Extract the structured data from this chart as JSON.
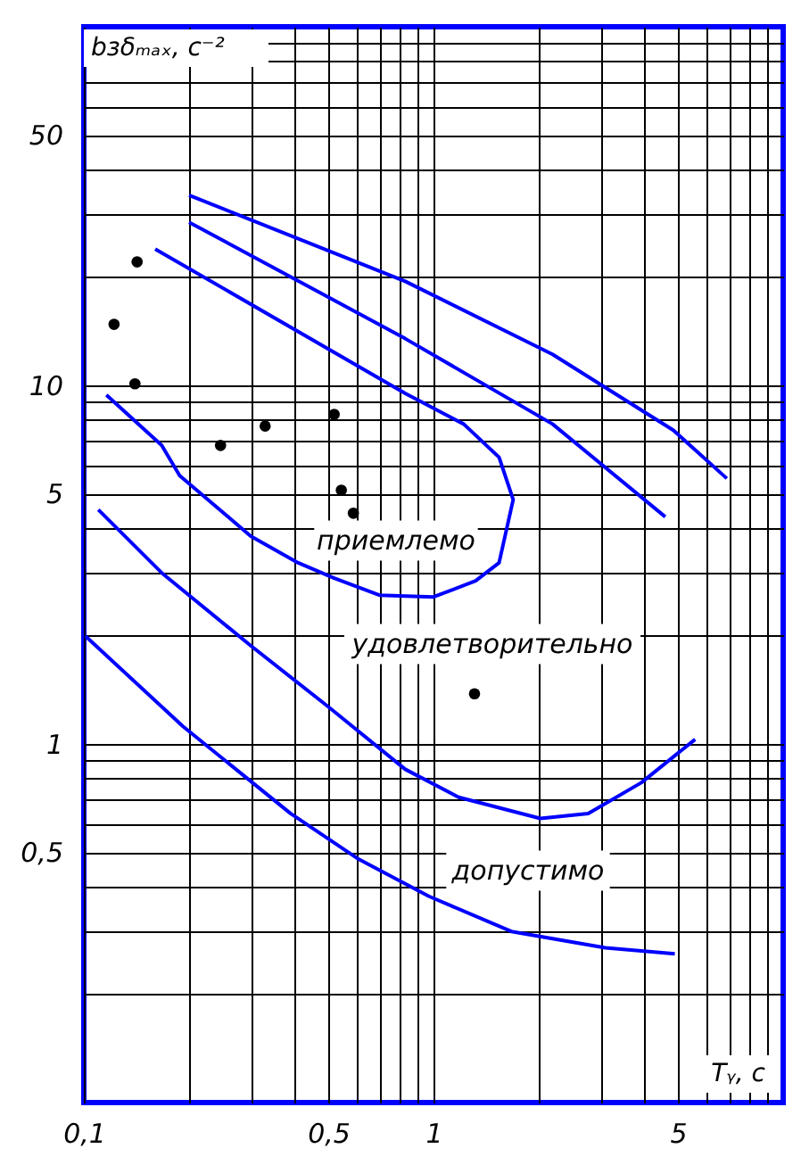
{
  "chart_data": {
    "type": "line",
    "xlabel": "Tᵧ, с",
    "ylabel": "bзδₘₐₓ, с⁻²",
    "log": "xy",
    "grid": true,
    "line_style": "solid",
    "xlim": [
      0.1,
      10
    ],
    "ylim": [
      0.1,
      100
    ],
    "xticks": [
      {
        "value": 0.1,
        "label": "0,1"
      },
      {
        "value": 0.2,
        "label": null
      },
      {
        "value": 0.3,
        "label": null
      },
      {
        "value": 0.4,
        "label": null
      },
      {
        "value": 0.5,
        "label": "0,5"
      },
      {
        "value": 0.6,
        "label": null
      },
      {
        "value": 0.7,
        "label": null
      },
      {
        "value": 0.8,
        "label": null
      },
      {
        "value": 0.9,
        "label": null
      },
      1,
      {
        "value": 2,
        "label": null
      },
      {
        "value": 3,
        "label": null
      },
      {
        "value": 4,
        "label": null
      },
      5,
      {
        "value": 6,
        "label": null
      },
      {
        "value": 7,
        "label": null
      },
      {
        "value": 8,
        "label": null
      },
      {
        "value": 9,
        "label": null
      }
    ],
    "yticks": [
      {
        "value": 0.2,
        "label": null
      },
      {
        "value": 0.3,
        "label": null
      },
      {
        "value": 0.4,
        "label": null
      },
      {
        "value": 0.5,
        "label": "0,5"
      },
      {
        "value": 0.6,
        "label": null
      },
      {
        "value": 0.7,
        "label": null
      },
      {
        "value": 0.8,
        "label": null
      },
      {
        "value": 0.9,
        "label": null
      },
      1,
      {
        "value": 2,
        "label": null
      },
      {
        "value": 3,
        "label": null
      },
      {
        "value": 4,
        "label": null
      },
      5,
      {
        "value": 6,
        "label": null
      },
      {
        "value": 7,
        "label": null
      },
      {
        "value": 8,
        "label": null
      },
      {
        "value": 9,
        "label": null
      },
      10,
      {
        "value": 20,
        "label": null
      },
      {
        "value": 30,
        "label": null
      },
      {
        "value": 40,
        "label": null
      },
      50,
      {
        "value": 60,
        "label": null
      },
      {
        "value": 70,
        "label": null
      },
      {
        "value": 80,
        "label": null
      },
      {
        "value": 90,
        "label": null
      }
    ],
    "series": [
      {
        "color": "#0000ff",
        "x": [
          0.2,
          0.83,
          2.19,
          4.85,
          6.9
        ],
        "values": [
          33.9,
          19.5,
          12.2,
          7.5,
          5.5
        ]
      },
      {
        "color": "#0000ff",
        "x": [
          0.2,
          0.83,
          2.19,
          4.6
        ],
        "values": [
          28.5,
          13.5,
          7.8,
          4.3
        ]
      },
      {
        "color": "#0000ff",
        "x": [
          0.116,
          0.167,
          0.188,
          0.3,
          0.41,
          0.52,
          0.7,
          1.0,
          1.32,
          1.54,
          1.69,
          1.54,
          1.22,
          0.83,
          0.16
        ],
        "values": [
          9.4,
          6.8,
          5.6,
          3.8,
          3.2,
          2.9,
          2.6,
          2.57,
          2.85,
          3.2,
          4.8,
          6.3,
          7.8,
          9.5,
          24.0
        ]
      },
      {
        "color": "#0000ff",
        "x": [
          0.11,
          0.167,
          0.3,
          0.5,
          0.83,
          1.18,
          2.02,
          2.77,
          3.93,
          5.6
        ],
        "values": [
          4.5,
          3.0,
          1.88,
          1.27,
          0.85,
          0.71,
          0.62,
          0.64,
          0.78,
          1.03
        ]
      },
      {
        "color": "#0000ff",
        "x": [
          0.101,
          0.192,
          0.39,
          0.605,
          0.97,
          1.67,
          3.1,
          4.9
        ],
        "values": [
          2.0,
          1.12,
          0.64,
          0.48,
          0.376,
          0.3,
          0.27,
          0.26
        ]
      },
      {
        "type": "scatter",
        "color": "#000000",
        "marker": "circle",
        "x": [
          0.142,
          0.122,
          0.14,
          0.246,
          0.33,
          0.52,
          0.545,
          0.59,
          1.31
        ],
        "values": [
          22.1,
          14.8,
          10.1,
          6.8,
          7.7,
          8.3,
          5.1,
          4.4,
          1.38
        ]
      }
    ],
    "annotations": [
      "приемлемо",
      "удовлетворительно",
      "допустимо"
    ]
  }
}
